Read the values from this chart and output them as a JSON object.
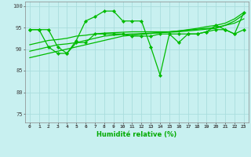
{
  "title": "",
  "xlabel": "Humidité relative (%)",
  "ylabel": "",
  "bg_color": "#c8f0f0",
  "grid_color": "#aadddd",
  "line_color": "#00bb00",
  "xlim": [
    -0.5,
    23.5
  ],
  "ylim": [
    73,
    101
  ],
  "yticks": [
    75,
    80,
    85,
    90,
    95,
    100
  ],
  "xticks": [
    0,
    1,
    2,
    3,
    4,
    5,
    6,
    7,
    8,
    9,
    10,
    11,
    12,
    13,
    14,
    15,
    16,
    17,
    18,
    19,
    20,
    21,
    22,
    23
  ],
  "series1": [
    94.5,
    94.5,
    94.5,
    90.5,
    89.0,
    92.0,
    96.5,
    97.5,
    98.8,
    98.8,
    96.5,
    96.5,
    96.5,
    90.5,
    84.0,
    93.5,
    91.5,
    93.5,
    93.5,
    94.0,
    95.5,
    94.5,
    93.5,
    98.5
  ],
  "trend1": [
    88.0,
    88.5,
    89.0,
    89.5,
    90.0,
    90.5,
    91.0,
    91.5,
    92.0,
    92.5,
    93.0,
    93.2,
    93.4,
    93.6,
    93.8,
    94.0,
    94.2,
    94.4,
    94.6,
    94.8,
    95.0,
    95.5,
    96.0,
    97.0
  ],
  "trend2": [
    89.5,
    90.0,
    90.5,
    91.0,
    91.2,
    91.5,
    92.0,
    92.5,
    93.0,
    93.2,
    93.4,
    93.5,
    93.6,
    93.7,
    93.8,
    93.9,
    94.0,
    94.2,
    94.4,
    94.6,
    94.8,
    95.5,
    96.5,
    98.0
  ],
  "trend3": [
    91.0,
    91.5,
    92.0,
    92.2,
    92.5,
    93.0,
    93.2,
    93.5,
    93.7,
    93.8,
    93.9,
    94.0,
    94.0,
    94.0,
    94.0,
    94.0,
    94.2,
    94.5,
    94.8,
    95.2,
    95.5,
    96.0,
    97.0,
    98.5
  ],
  "series2": [
    94.5,
    94.5,
    90.5,
    89.0,
    89.0,
    91.5,
    91.5,
    93.5,
    93.5,
    93.5,
    93.5,
    93.0,
    93.0,
    93.0,
    93.5,
    93.5,
    93.5,
    93.5,
    93.5,
    94.0,
    94.5,
    94.5,
    93.5,
    94.5
  ]
}
